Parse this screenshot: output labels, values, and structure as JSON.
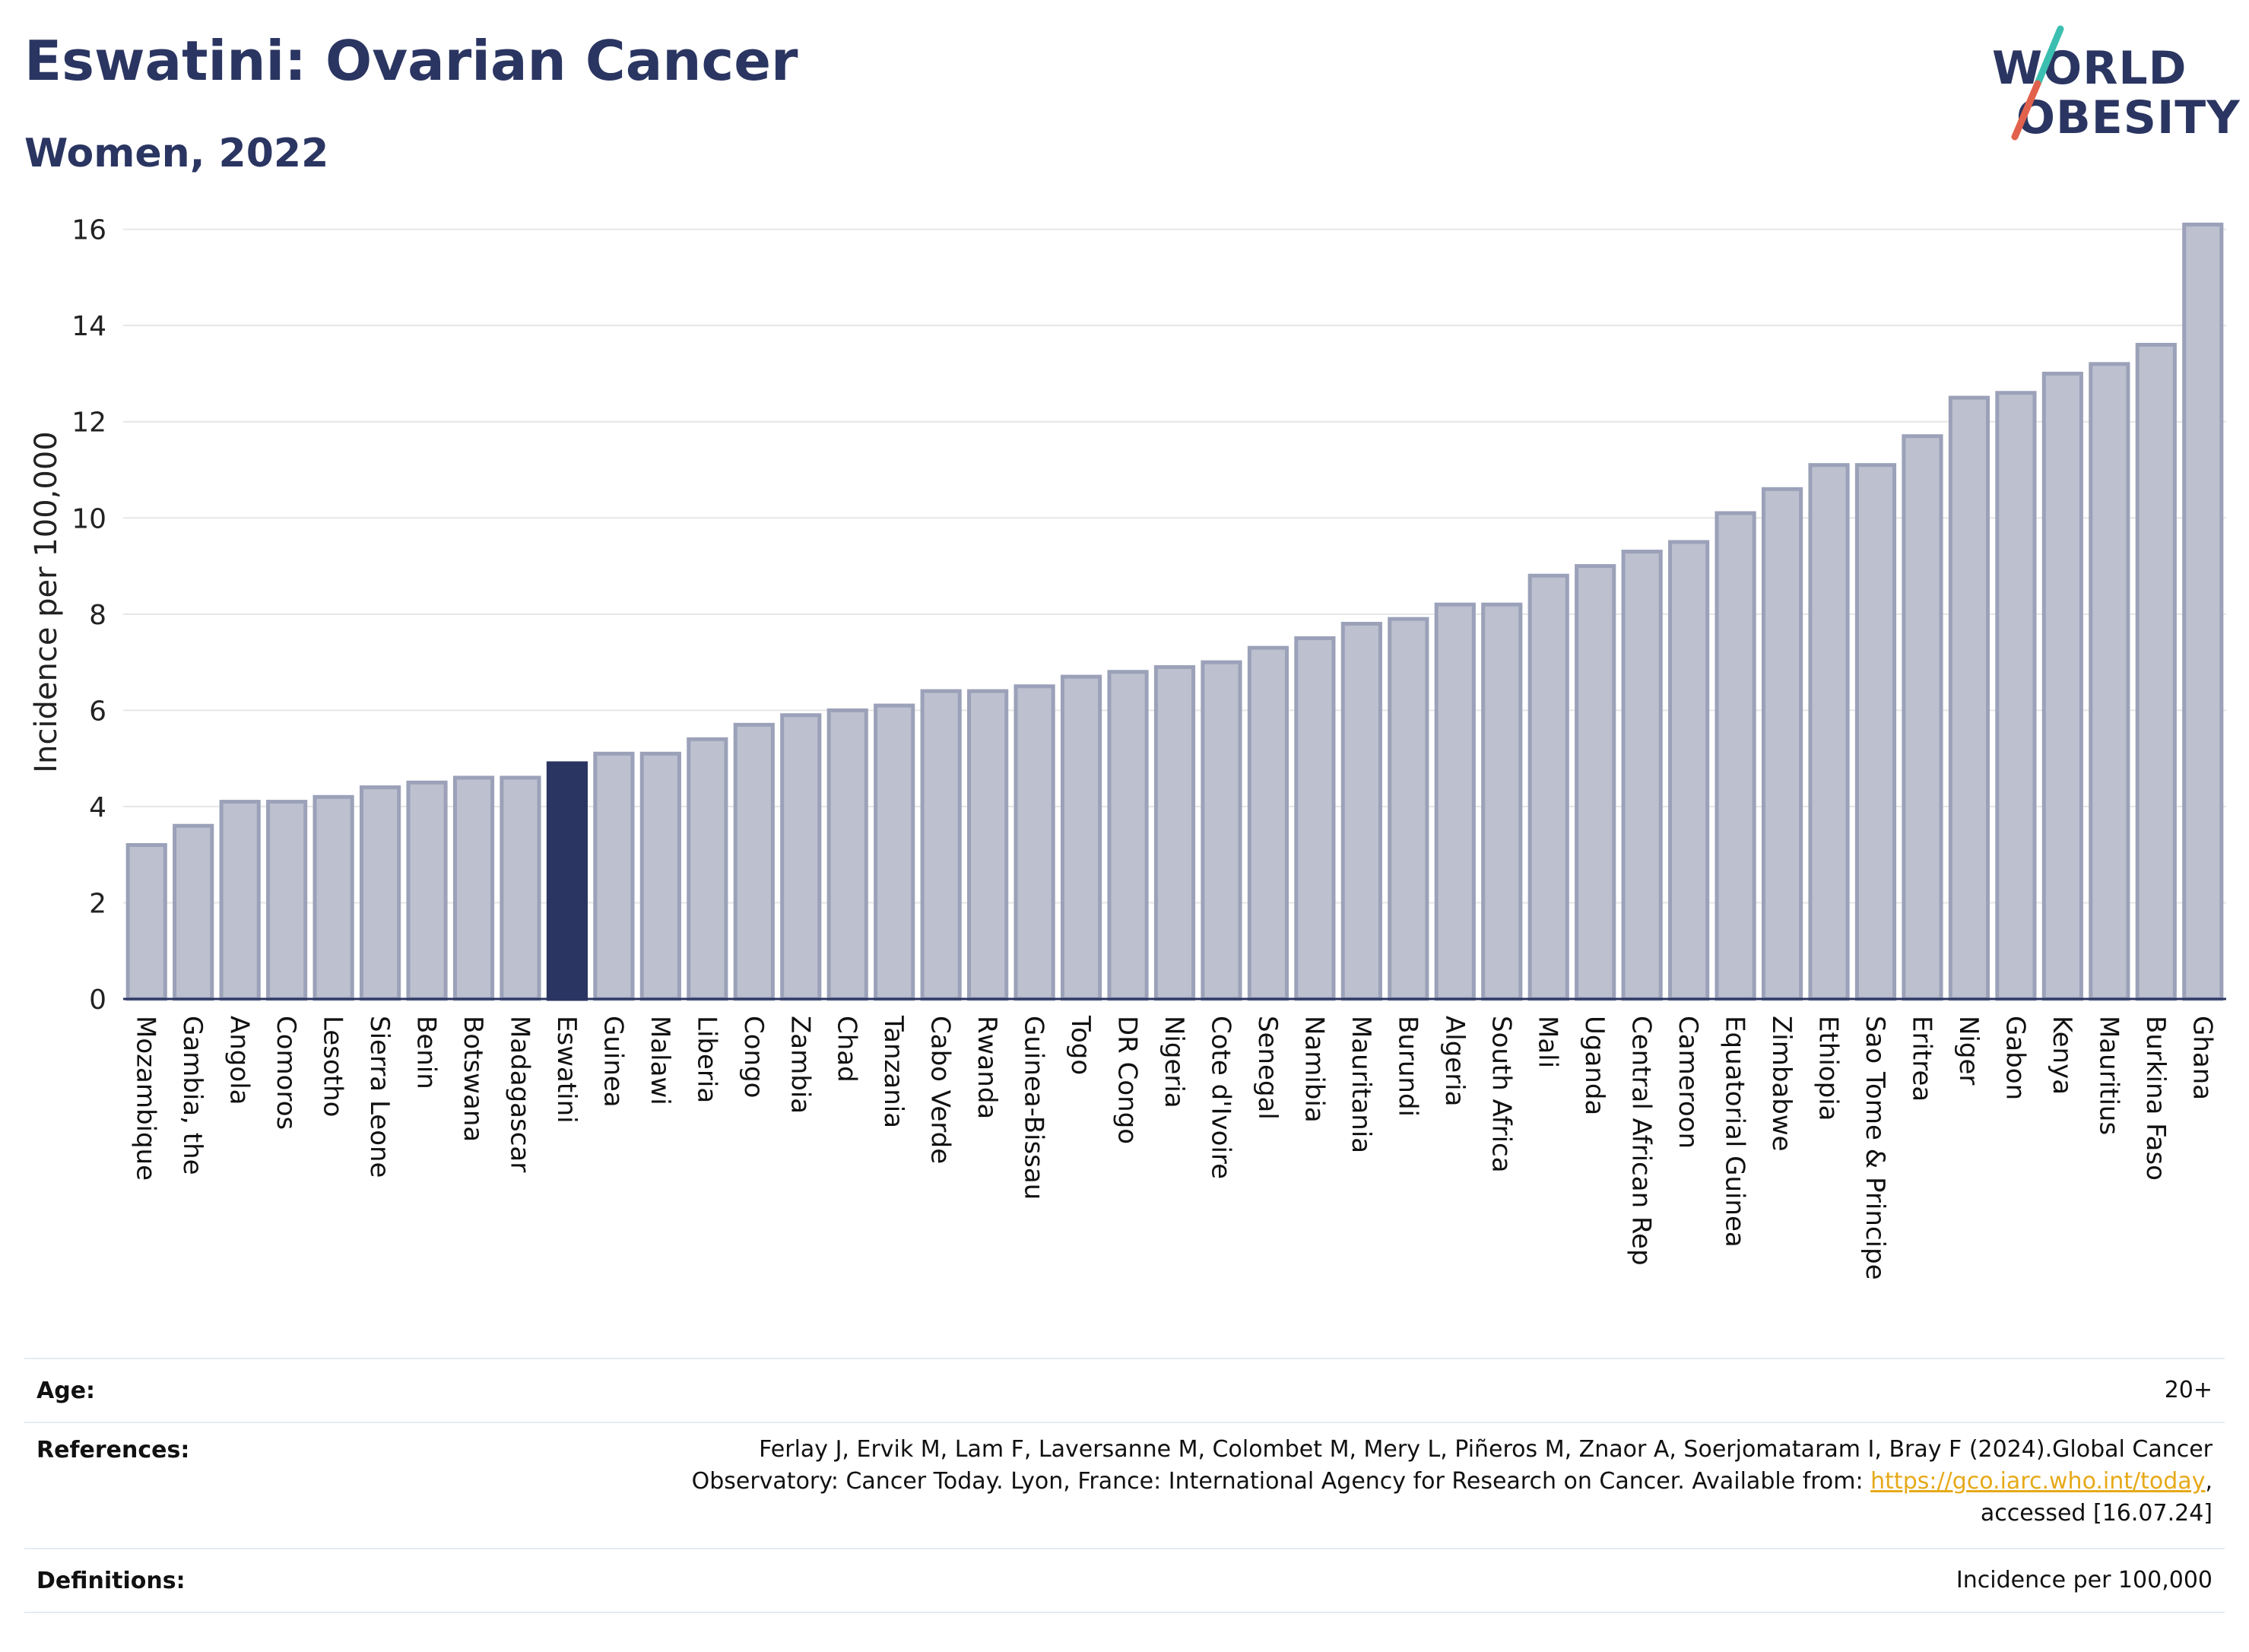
{
  "header": {
    "title": "Eswatini: Ovarian Cancer",
    "subtitle": "Women, 2022"
  },
  "logo": {
    "line1": "WORLD",
    "line2": "OBESITY"
  },
  "colors": {
    "highlight": "#2a3561",
    "bar_fill": "#bcc0cf",
    "bar_stroke": "#9ba1b8",
    "grid": "#e6e6e6",
    "logo_teal": "#3cbfb0",
    "logo_red": "#e2614c"
  },
  "chart_data": {
    "type": "bar",
    "ylabel": "Incidence per 100,000",
    "ylim": [
      0,
      16.5
    ],
    "yticks": [
      0,
      2,
      4,
      6,
      8,
      10,
      12,
      14,
      16
    ],
    "grid": true,
    "highlight": "Eswatini",
    "categories": [
      "Mozambique",
      "Gambia, the",
      "Angola",
      "Comoros",
      "Lesotho",
      "Sierra Leone",
      "Benin",
      "Botswana",
      "Madagascar",
      "Eswatini",
      "Guinea",
      "Malawi",
      "Liberia",
      "Congo",
      "Zambia",
      "Chad",
      "Tanzania",
      "Cabo Verde",
      "Rwanda",
      "Guinea-Bissau",
      "Togo",
      "DR Congo",
      "Nigeria",
      "Cote d'Ivoire",
      "Senegal",
      "Namibia",
      "Mauritania",
      "Burundi",
      "Algeria",
      "South Africa",
      "Mali",
      "Uganda",
      "Central African Rep",
      "Cameroon",
      "Equatorial Guinea",
      "Zimbabwe",
      "Ethiopia",
      "Sao Tome & Principe",
      "Eritrea",
      "Niger",
      "Gabon",
      "Kenya",
      "Mauritius",
      "Burkina Faso",
      "Ghana"
    ],
    "values": [
      3.2,
      3.6,
      4.1,
      4.1,
      4.2,
      4.4,
      4.5,
      4.6,
      4.6,
      4.9,
      5.1,
      5.1,
      5.4,
      5.7,
      5.9,
      6.0,
      6.1,
      6.4,
      6.4,
      6.5,
      6.7,
      6.8,
      6.9,
      7.0,
      7.3,
      7.5,
      7.8,
      7.9,
      8.2,
      8.2,
      8.8,
      9.0,
      9.3,
      9.5,
      10.1,
      10.6,
      11.1,
      11.1,
      11.7,
      12.5,
      12.6,
      13.0,
      13.2,
      13.6,
      16.1
    ]
  },
  "footer": {
    "age_label": "Age:",
    "age_value": "20+",
    "refs_label": "References:",
    "refs_text_1": "Ferlay J, Ervik M, Lam F, Laversanne M, Colombet M, Mery L, Piñeros M, Znaor A, Soerjomataram I, Bray F (2024).Global Cancer",
    "refs_text_2": "Observatory: Cancer Today. Lyon, France: International Agency for Research on Cancer. Available from: ",
    "refs_link": "https://gco.iarc.who.int/today",
    "refs_text_3": ",",
    "refs_text_4": "accessed [16.07.24]",
    "defs_label": "Definitions:",
    "defs_value": "Incidence per 100,000"
  }
}
